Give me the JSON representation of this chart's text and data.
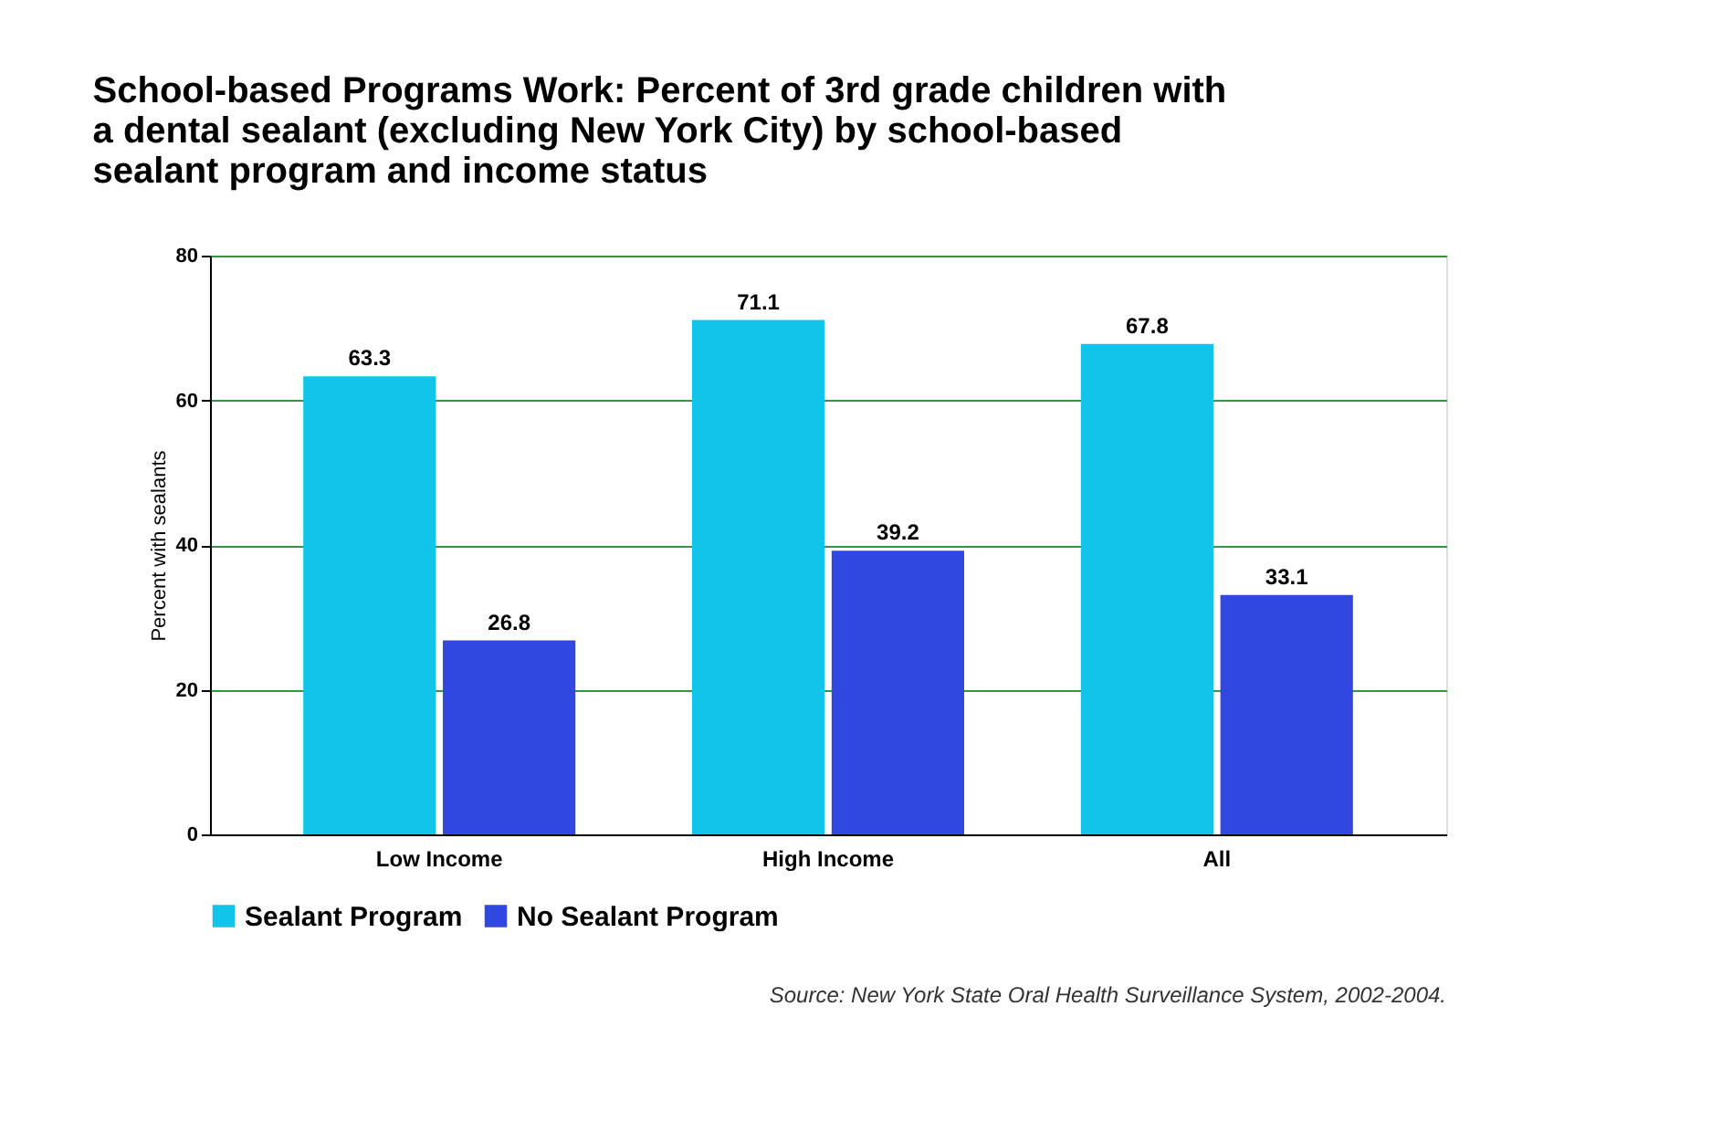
{
  "chart_data": {
    "type": "bar",
    "title": "School-based Programs Work: Percent of 3rd grade children with a dental sealant (excluding New York City) by school-based sealant program and income status",
    "ylabel": "Percent with sealants",
    "categories": [
      "Low Income",
      "High Income",
      "All"
    ],
    "series": [
      {
        "name": "Sealant Program",
        "color": "#10c4ea",
        "values": [
          63.3,
          71.1,
          67.8
        ]
      },
      {
        "name": "No Sealant Program",
        "color": "#3048e0",
        "values": [
          26.8,
          39.2,
          33.1
        ]
      }
    ],
    "ylim": [
      0,
      80
    ],
    "yticks": [
      0,
      20,
      40,
      60,
      80
    ],
    "grid": "y",
    "legend": "bottom",
    "data_labels": true,
    "annotations": [
      "Source: New York State Oral Health Surveillance System, 2002-2004."
    ]
  }
}
